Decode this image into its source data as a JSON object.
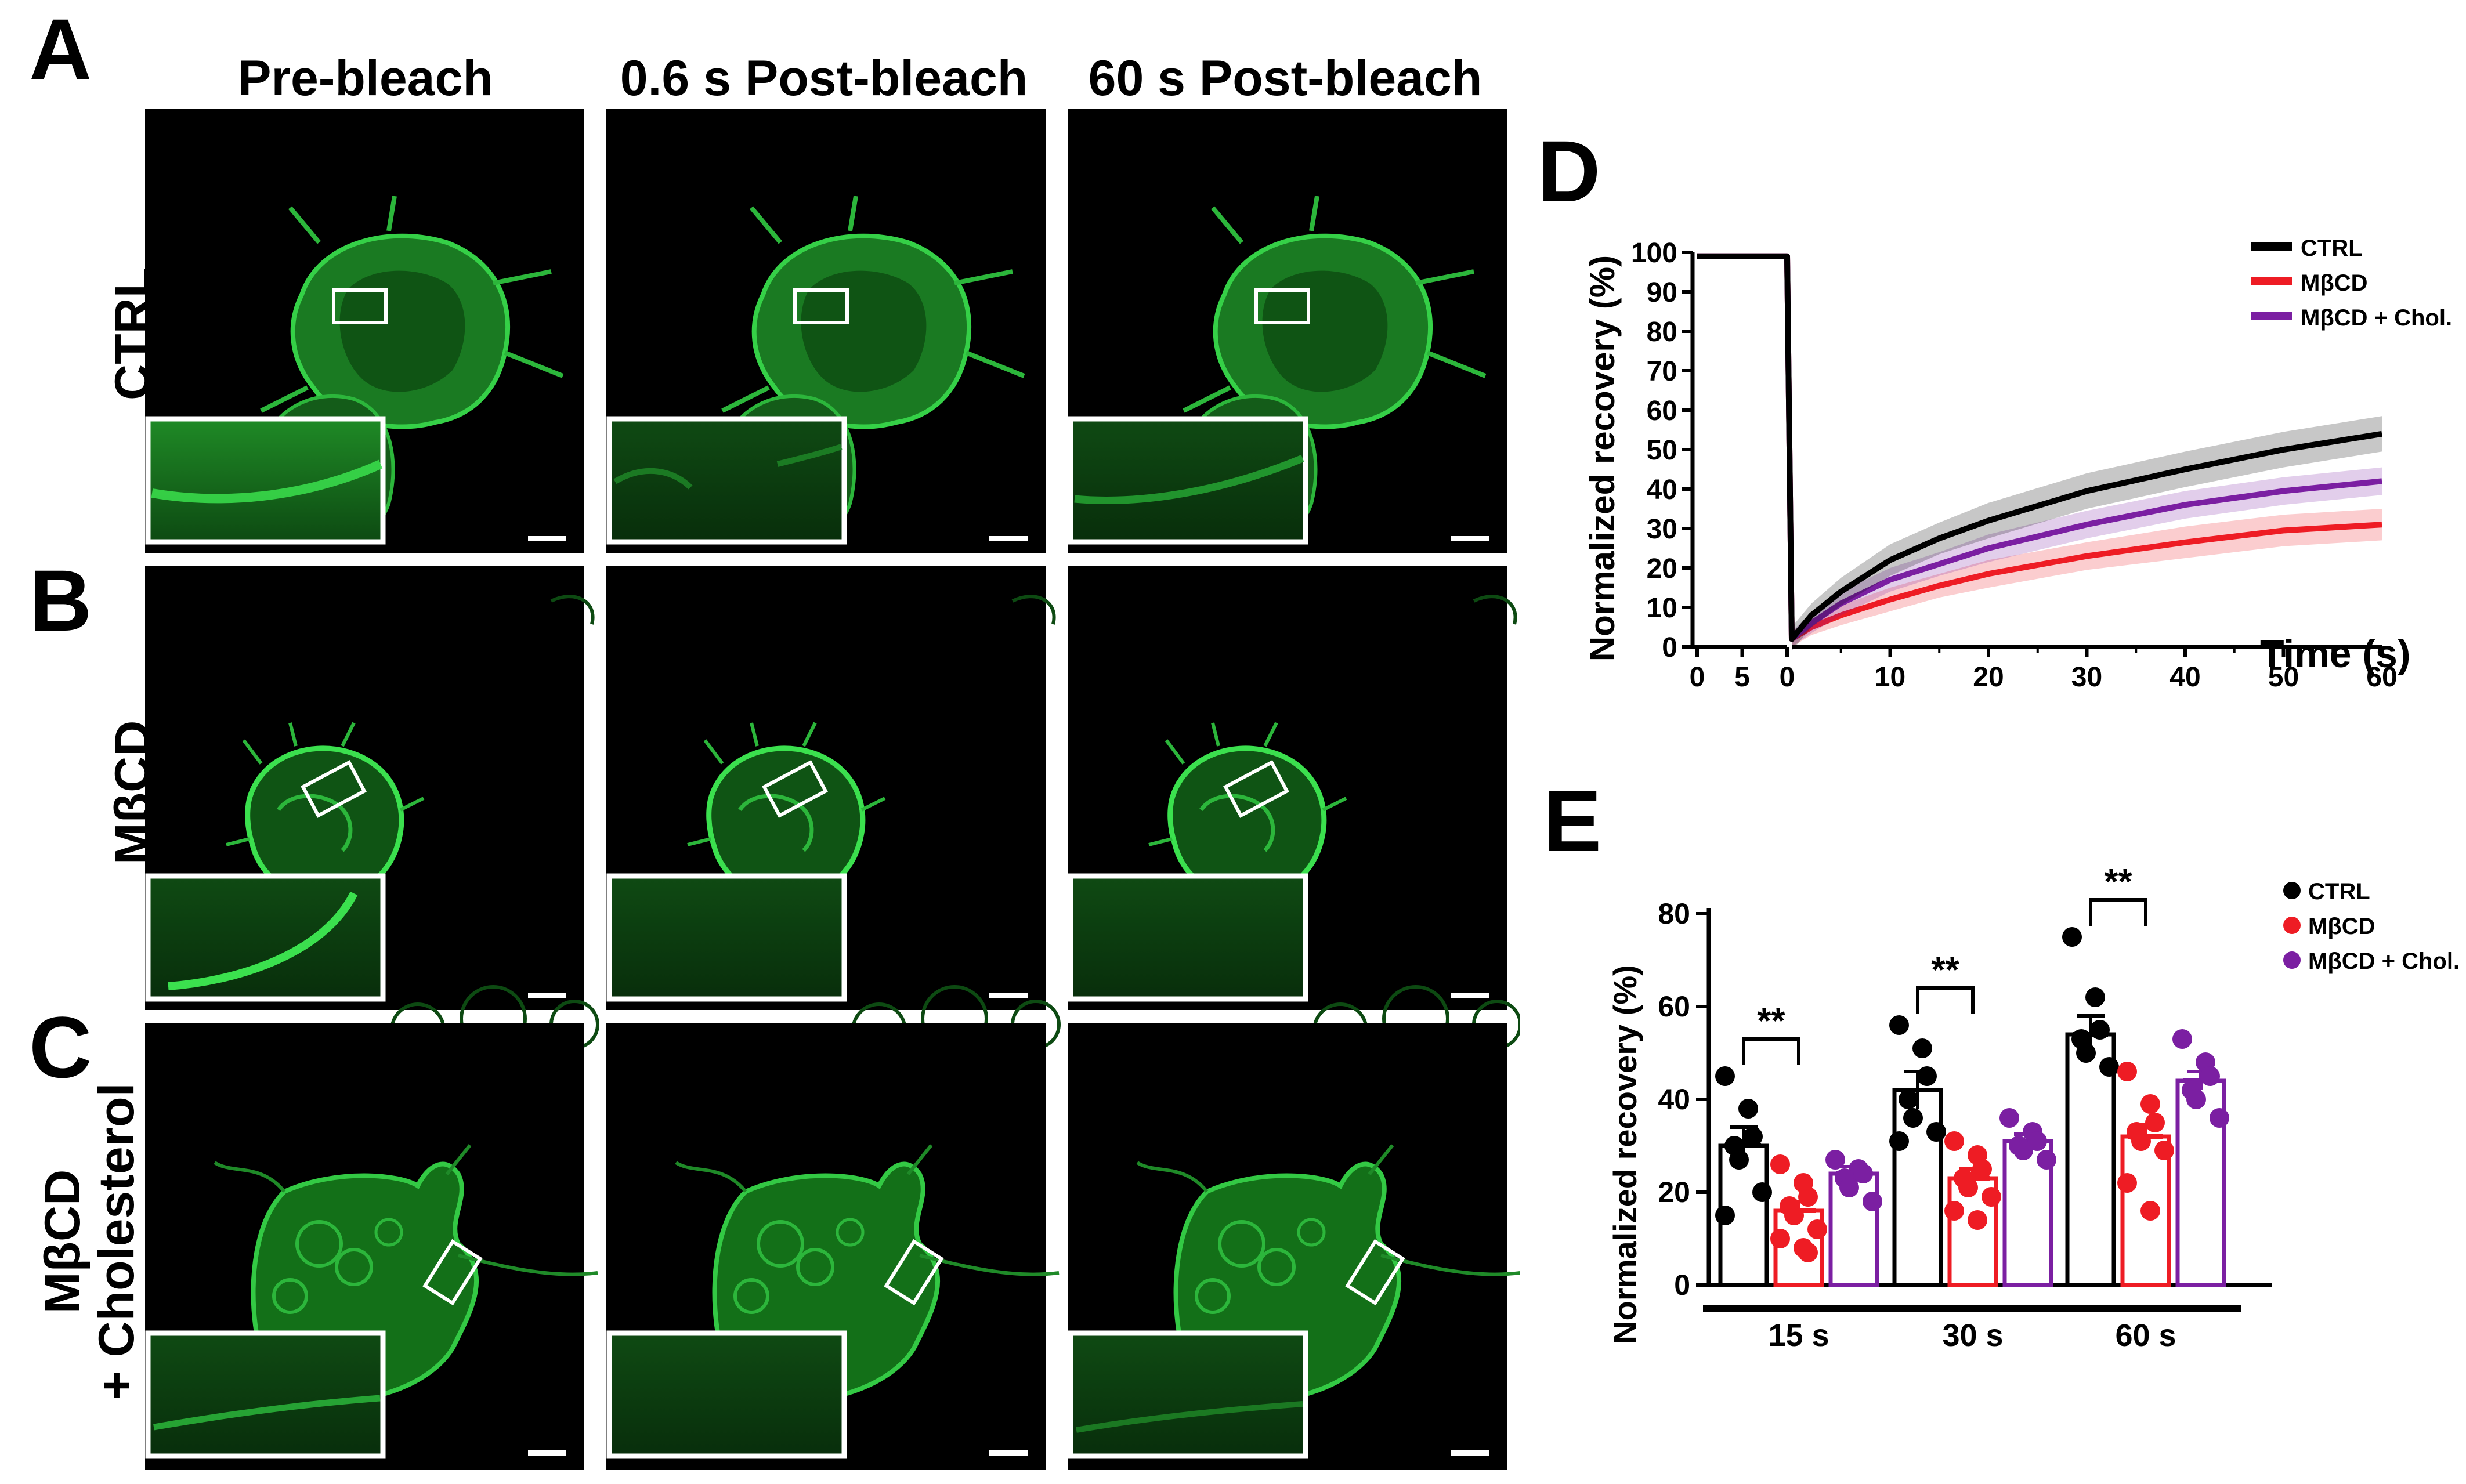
{
  "panels": {
    "A": "A",
    "B": "B",
    "C": "C",
    "D": "D",
    "E": "E"
  },
  "columns": [
    "Pre-bleach",
    "0.6 s Post-bleach",
    "60 s Post-bleach"
  ],
  "rows": [
    "CTRL",
    "MβCD",
    "MβCD",
    "+ Cholesterol"
  ],
  "colors": {
    "ctrl": "#000000",
    "mbcd": "#ee1c24",
    "chol": "#7b1fa2",
    "cell": "#29c43a",
    "background": "#000000"
  },
  "chart_data": [
    {
      "type": "line",
      "panel": "D",
      "xlabel": "Time (s)",
      "ylabel": "Normalized recovery (%)",
      "x_pre_ticks": [
        "0",
        "5",
        "0"
      ],
      "xticks": [
        "10",
        "20",
        "30",
        "40",
        "50",
        "60"
      ],
      "yticks": [
        "0",
        "10",
        "20",
        "30",
        "40",
        "50",
        "60",
        "70",
        "80",
        "90",
        "100"
      ],
      "ylim": [
        0,
        100
      ],
      "xlim": [
        0,
        60
      ],
      "prebleach_range": [
        -10,
        0
      ],
      "legend_position": "top-right",
      "series": [
        {
          "name": "CTRL",
          "color": "#000000",
          "pre": [
            99,
            99
          ],
          "x": [
            0,
            2,
            5,
            10,
            15,
            20,
            30,
            40,
            50,
            60
          ],
          "y": [
            2,
            8,
            14,
            22,
            27.5,
            32,
            39.5,
            45,
            50,
            54
          ],
          "err": [
            3,
            3,
            3.5,
            4,
            4,
            4.5,
            4.5,
            4.5,
            4.5,
            4.5
          ]
        },
        {
          "name": "MβCD",
          "color": "#ee1c24",
          "pre": [
            99,
            99
          ],
          "x": [
            0,
            2,
            5,
            10,
            15,
            20,
            30,
            40,
            50,
            60
          ],
          "y": [
            2,
            5,
            8,
            12,
            15.5,
            18.5,
            23,
            26.5,
            29.5,
            31
          ],
          "err": [
            2,
            2,
            2.5,
            3,
            3,
            3.5,
            3.5,
            4,
            4,
            4
          ]
        },
        {
          "name": "MβCD + Chol.",
          "color": "#7b1fa2",
          "pre": [
            99,
            99
          ],
          "x": [
            0,
            2,
            5,
            10,
            15,
            20,
            30,
            40,
            50,
            60
          ],
          "y": [
            2,
            6,
            11,
            17,
            21,
            25,
            31,
            36,
            39.5,
            42
          ],
          "err": [
            2,
            2.5,
            3,
            3,
            3,
            3.5,
            3.5,
            3.5,
            3.5,
            3.5
          ]
        }
      ]
    },
    {
      "type": "bar",
      "panel": "E",
      "ylabel": "Normalized recovery (%)",
      "categories": [
        "15 s",
        "30 s",
        "60 s"
      ],
      "yticks": [
        "0",
        "20",
        "40",
        "60",
        "80"
      ],
      "ylim": [
        0,
        80
      ],
      "legend_position": "top-right",
      "significance": [
        "**",
        "**",
        "**"
      ],
      "series": [
        {
          "name": "CTRL",
          "color": "#000000",
          "values": [
            30,
            42,
            54
          ],
          "sem": [
            4,
            4,
            4
          ],
          "points": [
            [
              45,
              38,
              32,
              30,
              27,
              20,
              15
            ],
            [
              56,
              51,
              45,
              40,
              36,
              33,
              31
            ],
            [
              75,
              62,
              55,
              53,
              50,
              47
            ]
          ]
        },
        {
          "name": "MβCD",
          "color": "#ee1c24",
          "values": [
            16,
            23,
            32
          ],
          "sem": [
            2,
            2,
            2.5
          ],
          "points": [
            [
              26,
              22,
              19,
              17,
              15,
              12,
              10,
              8,
              7
            ],
            [
              31,
              28,
              25,
              23,
              21,
              19,
              16,
              14
            ],
            [
              46,
              39,
              35,
              33,
              31,
              29,
              22,
              16
            ]
          ]
        },
        {
          "name": "MβCD + Chol.",
          "color": "#7b1fa2",
          "values": [
            24,
            31,
            44
          ],
          "sem": [
            1.5,
            1.5,
            2
          ],
          "points": [
            [
              27,
              25,
              24,
              23,
              21,
              18
            ],
            [
              36,
              33,
              31,
              30,
              29,
              27
            ],
            [
              53,
              48,
              45,
              42,
              40,
              36
            ]
          ]
        }
      ]
    }
  ]
}
